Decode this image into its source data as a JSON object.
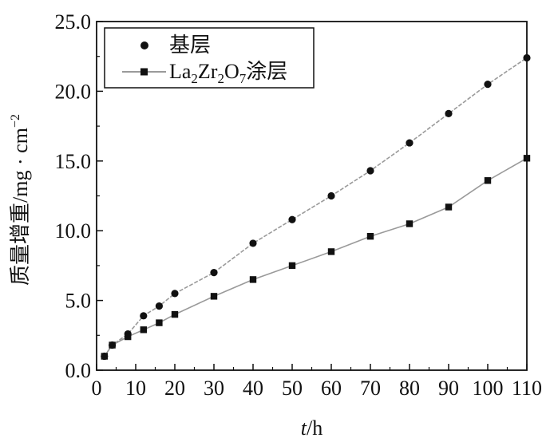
{
  "chart_data": {
    "type": "line",
    "xlabel_var": "t",
    "xlabel_unit": "/h",
    "ylabel": "质量增重/mg · cm",
    "ylabel_sup": "−2",
    "xlim": [
      0,
      110
    ],
    "ylim": [
      0,
      25
    ],
    "x_ticks": [
      0,
      10,
      20,
      30,
      40,
      50,
      60,
      70,
      80,
      90,
      100,
      110
    ],
    "y_ticks": [
      "0.0",
      "5.0",
      "10.0",
      "15.0",
      "20.0",
      "25.0"
    ],
    "grid": false,
    "legend_position": "top-left",
    "series": [
      {
        "name": "基层",
        "marker": "circle",
        "color": "#111111",
        "line_color": "#9a9a9a",
        "x": [
          2,
          4,
          8,
          12,
          16,
          20,
          30,
          40,
          50,
          60,
          70,
          80,
          90,
          100,
          110
        ],
        "y": [
          1.0,
          1.8,
          2.6,
          3.9,
          4.6,
          5.5,
          7.0,
          9.1,
          10.8,
          12.5,
          14.3,
          16.3,
          18.4,
          20.5,
          22.4
        ]
      },
      {
        "name_parts": [
          "La",
          "2",
          "Zr",
          "2",
          "O",
          "7",
          "涂层"
        ],
        "marker": "square",
        "color": "#111111",
        "line_color": "#9a9a9a",
        "x": [
          2,
          4,
          8,
          12,
          16,
          20,
          30,
          40,
          50,
          60,
          70,
          80,
          90,
          100,
          110
        ],
        "y": [
          1.0,
          1.8,
          2.4,
          2.9,
          3.4,
          4.0,
          5.3,
          6.5,
          7.5,
          8.5,
          9.6,
          10.5,
          11.7,
          13.6,
          15.2
        ]
      }
    ]
  }
}
